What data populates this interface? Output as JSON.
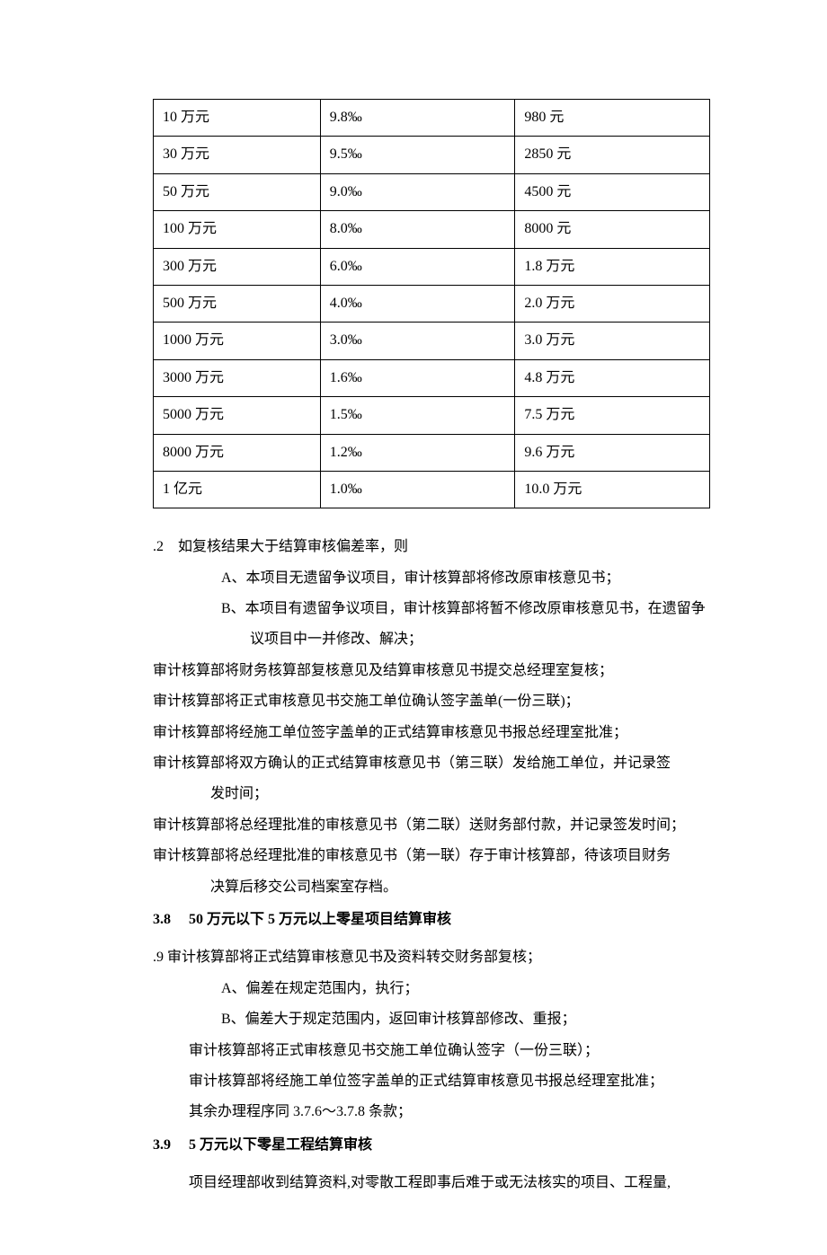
{
  "table": {
    "border_color": "#000000",
    "background_color": "#ffffff",
    "font_size": 16,
    "col_widths": [
      "30%",
      "35%",
      "35%"
    ],
    "rows": [
      [
        "10 万元",
        "9.8‰",
        "980 元"
      ],
      [
        "30 万元",
        "9.5‰",
        "2850 元"
      ],
      [
        "50 万元",
        "9.0‰",
        "4500 元"
      ],
      [
        "100 万元",
        "8.0‰",
        "8000 元"
      ],
      [
        "300 万元",
        "6.0‰",
        "1.8 万元"
      ],
      [
        "500 万元",
        "4.0‰",
        "2.0 万元"
      ],
      [
        "1000 万元",
        "3.0‰",
        "3.0 万元"
      ],
      [
        "3000 万元",
        "1.6‰",
        "4.8 万元"
      ],
      [
        "5000 万元",
        "1.5‰",
        "7.5 万元"
      ],
      [
        "8000 万元",
        "1.2‰",
        "9.6 万元"
      ],
      [
        "1 亿元",
        "1.0‰",
        "10.0 万元"
      ]
    ]
  },
  "sec2": {
    "lead": ".2　如复核结果大于结算审核偏差率，则",
    "a": "A、本项目无遗留争议项目，审计核算部将修改原审核意见书；",
    "b": "B、本项目有遗留争议项目，审计核算部将暂不修改原审核意见书，在遗留争",
    "b_cont": "议项目中一并修改、解决；",
    "p1": "审计核算部将财务核算部复核意见及结算审核意见书提交总经理室复核；",
    "p2": "审计核算部将正式审核意见书交施工单位确认签字盖单(一份三联)；",
    "p3": "审计核算部将经施工单位签字盖单的正式结算审核意见书报总经理室批准；",
    "p4": "审计核算部将双方确认的正式结算审核意见书（第三联）发给施工单位，并记录签",
    "p4_cont": "发时间；",
    "p5": "审计核算部将总经理批准的审核意见书（第二联）送财务部付款，并记录签发时间；",
    "p6": "审计核算部将总经理批准的审核意见书（第一联）存于审计核算部，待该项目财务",
    "p6_cont": "决算后移交公司档案室存档。"
  },
  "h38": "3.8　 50 万元以下 5 万元以上零星项目结算审核",
  "sec9": {
    "lead": ".9  审计核算部将正式结算审核意见书及资料转交财务部复核；",
    "a": "A、偏差在规定范围内，执行；",
    "b": "B、偏差大于规定范围内，返回审计核算部修改、重报；",
    "p1": "审计核算部将正式审核意见书交施工单位确认签字（一份三联）；",
    "p2": "审计核算部将经施工单位签字盖单的正式结算审核意见书报总经理室批准；",
    "p3": "其余办理程序同 3.7.6～3.7.8 条款；"
  },
  "h39": "3.9　 5 万元以下零星工程结算审核",
  "sec39_p": "项目经理部收到结算资料,对零散工程即事后难于或无法核实的项目、工程量,"
}
